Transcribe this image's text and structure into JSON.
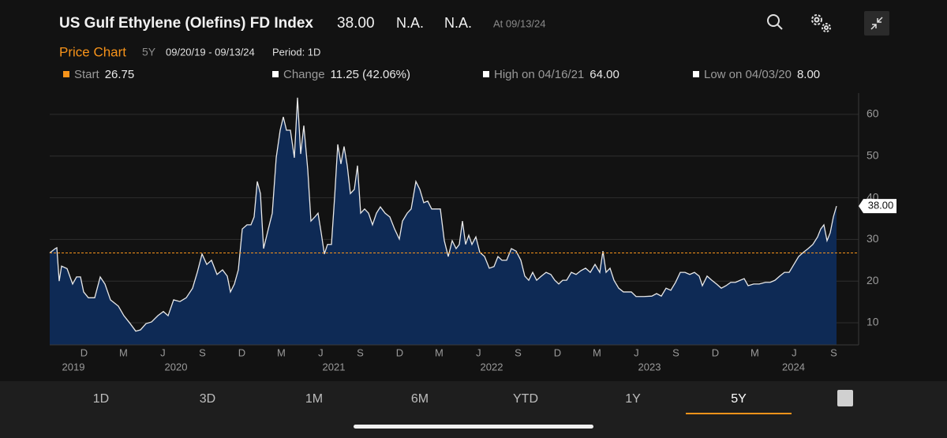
{
  "header": {
    "title": "US Gulf Ethylene (Olefins) FD Index",
    "price": "38.00",
    "change": "N.A.",
    "pct_change": "N.A.",
    "as_of": "At 09/13/24"
  },
  "subheader": {
    "title": "Price Chart",
    "range": "5Y",
    "dates": "09/20/19 - 09/13/24",
    "period": "Period: 1D"
  },
  "stats": [
    {
      "label": "Start",
      "value": "26.75",
      "color": "#f7931a"
    },
    {
      "label": "Change",
      "value": "11.25 (42.06%)",
      "color": "#ffffff"
    },
    {
      "label": "High on 04/16/21",
      "value": "64.00",
      "color": "#ffffff"
    },
    {
      "label": "Low on 04/03/20",
      "value": "8.00",
      "color": "#ffffff"
    }
  ],
  "chart_data": {
    "type": "area",
    "color": "#e8e8e8",
    "fill": "#0e2a55",
    "grid": true,
    "x": [
      2019.7,
      2019.735,
      2019.745,
      2019.76,
      2019.775,
      2019.81,
      2019.845,
      2019.87,
      2019.895,
      2019.915,
      2019.945,
      2019.985,
      2020.02,
      2020.05,
      2020.085,
      2020.135,
      2020.17,
      2020.21,
      2020.245,
      2020.275,
      2020.31,
      2020.345,
      2020.385,
      2020.42,
      2020.45,
      2020.485,
      2020.525,
      2020.565,
      2020.605,
      2020.635,
      2020.665,
      2020.695,
      2020.725,
      2020.76,
      2020.795,
      2020.825,
      2020.845,
      2020.87,
      2020.895,
      2020.92,
      2020.95,
      2020.975,
      2020.995,
      2021.015,
      2021.035,
      2021.055,
      2021.085,
      2021.11,
      2021.135,
      2021.16,
      2021.18,
      2021.2,
      2021.225,
      2021.25,
      2021.27,
      2021.29,
      2021.31,
      2021.335,
      2021.355,
      2021.38,
      2021.4,
      2021.42,
      2021.44,
      2021.46,
      2021.485,
      2021.505,
      2021.525,
      2021.545,
      2021.565,
      2021.585,
      2021.605,
      2021.63,
      2021.65,
      2021.67,
      2021.695,
      2021.72,
      2021.745,
      2021.77,
      2021.795,
      2021.825,
      2021.855,
      2021.885,
      2021.915,
      2021.935,
      2021.965,
      2021.99,
      2022.02,
      2022.045,
      2022.07,
      2022.095,
      2022.12,
      2022.145,
      2022.175,
      2022.2,
      2022.225,
      2022.25,
      2022.275,
      2022.295,
      2022.315,
      2022.335,
      2022.355,
      2022.375,
      2022.4,
      2022.425,
      2022.455,
      2022.485,
      2022.515,
      2022.54,
      2022.565,
      2022.595,
      2022.625,
      2022.655,
      2022.685,
      2022.71,
      2022.735,
      2022.76,
      2022.785,
      2022.815,
      2022.845,
      2022.875,
      2022.9,
      2022.925,
      2022.95,
      2022.975,
      2023.005,
      2023.035,
      2023.065,
      2023.095,
      2023.125,
      2023.155,
      2023.185,
      2023.205,
      2023.225,
      2023.25,
      2023.275,
      2023.305,
      2023.335,
      2023.385,
      2023.415,
      2023.465,
      2023.515,
      2023.545,
      2023.575,
      2023.605,
      2023.635,
      2023.665,
      2023.695,
      2023.725,
      2023.755,
      2023.785,
      2023.815,
      2023.835,
      2023.865,
      2023.895,
      2023.925,
      2023.955,
      2023.985,
      2024.015,
      2024.045,
      2024.075,
      2024.1,
      2024.125,
      2024.16,
      2024.195,
      2024.235,
      2024.265,
      2024.295,
      2024.325,
      2024.355,
      2024.385,
      2024.415,
      2024.445,
      2024.475,
      2024.505,
      2024.535,
      2024.565,
      2024.585,
      2024.605,
      2024.625,
      2024.645,
      2024.665,
      2024.685
    ],
    "values": [
      26.75,
      27.8,
      28,
      20,
      23.6,
      23,
      19.3,
      21,
      21,
      17.4,
      16,
      16,
      21,
      19.3,
      15.5,
      14,
      11.7,
      9.8,
      8,
      8.3,
      9.8,
      10.2,
      11.7,
      12.7,
      11.7,
      15.5,
      15.1,
      16,
      18.3,
      22.1,
      26.5,
      24,
      25,
      21.6,
      22.7,
      21.2,
      17.4,
      19.3,
      22.7,
      32.5,
      33.5,
      33.5,
      35.4,
      43.9,
      41,
      27.8,
      32.5,
      36.3,
      49.6,
      56.2,
      59.4,
      56.2,
      56.2,
      49.6,
      64,
      50.5,
      57.3,
      46.7,
      34.4,
      35.4,
      36.3,
      31.6,
      26.5,
      28.8,
      28.8,
      40.1,
      52.8,
      48.1,
      52.3,
      47.7,
      41,
      42,
      47.7,
      36.3,
      37.3,
      36.3,
      33.5,
      36.3,
      37.8,
      36.3,
      35.4,
      32.5,
      30.1,
      34.4,
      36.3,
      37.3,
      43.9,
      42,
      38.8,
      39.2,
      37.3,
      37.3,
      37.3,
      29.7,
      25.9,
      29.7,
      27.8,
      28.8,
      34.4,
      28.8,
      31,
      28.8,
      30.6,
      26.9,
      25.9,
      23.1,
      23.5,
      25.9,
      25,
      25,
      27.8,
      27.2,
      25,
      21.2,
      20.2,
      22.1,
      20.2,
      21.2,
      22.1,
      21.6,
      20.2,
      19.3,
      20.2,
      20.2,
      22.1,
      21.6,
      22.5,
      23.1,
      22.1,
      24,
      22.1,
      27.2,
      22.1,
      23.1,
      20.2,
      18.3,
      17.4,
      17.4,
      16.3,
      16.3,
      16.4,
      17,
      16.4,
      18.3,
      17.8,
      19.7,
      22.1,
      22.1,
      21.6,
      22.1,
      21.2,
      18.9,
      21.2,
      20.2,
      19.3,
      18.3,
      18.9,
      19.7,
      19.7,
      20.2,
      20.6,
      18.9,
      19.3,
      19.3,
      19.7,
      19.7,
      20.2,
      21.2,
      22.1,
      22.1,
      24,
      25.9,
      26.9,
      27.8,
      28.8,
      30.6,
      32.5,
      33.5,
      29.7,
      31.6,
      35.4,
      38
    ],
    "xlim": [
      2019.7,
      2024.825
    ],
    "ylim": [
      4.7,
      65.1
    ],
    "yticks": [
      10,
      20,
      30,
      40,
      50,
      60
    ],
    "xticks": [
      {
        "value": 2019.917,
        "label": "D"
      },
      {
        "value": 2020.167,
        "label": "M"
      },
      {
        "value": 2020.417,
        "label": "J"
      },
      {
        "value": 2020.667,
        "label": "S"
      },
      {
        "value": 2020.917,
        "label": "D"
      },
      {
        "value": 2021.167,
        "label": "M"
      },
      {
        "value": 2021.417,
        "label": "J"
      },
      {
        "value": 2021.667,
        "label": "S"
      },
      {
        "value": 2021.917,
        "label": "D"
      },
      {
        "value": 2022.167,
        "label": "M"
      },
      {
        "value": 2022.417,
        "label": "J"
      },
      {
        "value": 2022.667,
        "label": "S"
      },
      {
        "value": 2022.917,
        "label": "D"
      },
      {
        "value": 2023.167,
        "label": "M"
      },
      {
        "value": 2023.417,
        "label": "J"
      },
      {
        "value": 2023.667,
        "label": "S"
      },
      {
        "value": 2023.917,
        "label": "D"
      },
      {
        "value": 2024.167,
        "label": "M"
      },
      {
        "value": 2024.417,
        "label": "J"
      },
      {
        "value": 2024.667,
        "label": "S"
      }
    ],
    "years": [
      2019,
      2020,
      2021,
      2022,
      2023,
      2024
    ],
    "start_line": 26.75,
    "start_line_color": "#f7931a",
    "price_tag": {
      "value": 38,
      "label": "38.00"
    }
  },
  "tabs": [
    "1D",
    "3D",
    "1M",
    "6M",
    "YTD",
    "1Y",
    "5Y"
  ],
  "selected_tab_index": 6
}
